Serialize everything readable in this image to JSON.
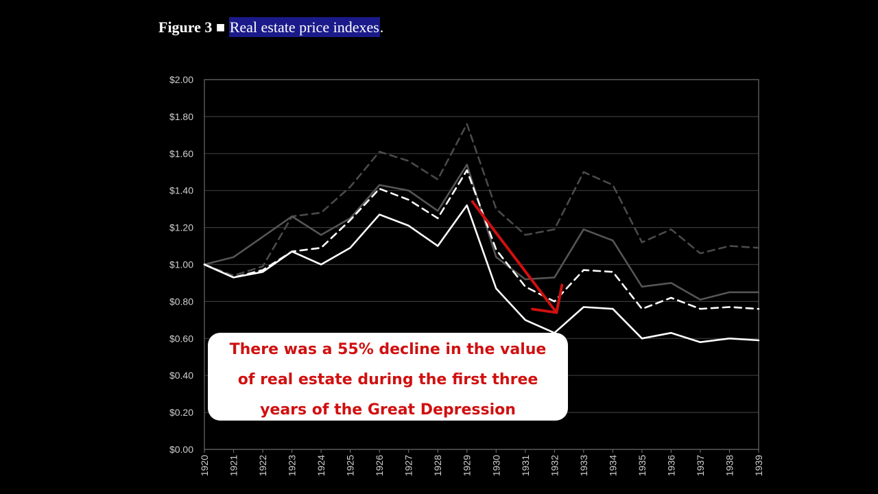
{
  "figure": {
    "label": "Figure 3",
    "marker": "■",
    "caption": "Real estate price indexes",
    "period": "."
  },
  "callout": {
    "lines": [
      "There was a 55% decline in the value",
      "of real estate during the first three",
      "years of the Great Depression"
    ]
  },
  "colors": {
    "background": "#000000",
    "arrow": "#d01010",
    "callout_text": "#d01010",
    "highlight": "#1a1a8a"
  },
  "chart_data": {
    "type": "line",
    "title": "",
    "xlabel": "",
    "ylabel": "",
    "ylim": [
      0,
      2
    ],
    "y_ticks": [
      "$0.00",
      "$0.20",
      "$0.40",
      "$0.60",
      "$0.80",
      "$1.00",
      "$1.20",
      "$1.40",
      "$1.60",
      "$1.80",
      "$2.00"
    ],
    "x": [
      "1920",
      "1921",
      "1922",
      "1923",
      "1924",
      "1925",
      "1926",
      "1927",
      "1928",
      "1929",
      "1930",
      "1931",
      "1932",
      "1933",
      "1934",
      "1935",
      "1936",
      "1937",
      "1938",
      "1939"
    ],
    "grid": true,
    "series": [
      {
        "style": "dashed",
        "color": "#4a4a4a",
        "values": [
          1.0,
          0.94,
          0.99,
          1.26,
          1.28,
          1.42,
          1.61,
          1.56,
          1.46,
          1.76,
          1.3,
          1.16,
          1.19,
          1.5,
          1.43,
          1.12,
          1.19,
          1.06,
          1.1,
          1.09
        ]
      },
      {
        "style": "solid",
        "color": "#555555",
        "values": [
          1.0,
          1.04,
          1.15,
          1.26,
          1.16,
          1.25,
          1.43,
          1.4,
          1.29,
          1.54,
          1.04,
          0.92,
          0.93,
          1.19,
          1.13,
          0.88,
          0.9,
          0.81,
          0.85,
          0.85
        ]
      },
      {
        "style": "dashed",
        "color": "#ffffff",
        "values": [
          1.0,
          0.93,
          0.97,
          1.07,
          1.09,
          1.24,
          1.41,
          1.35,
          1.25,
          1.51,
          1.08,
          0.88,
          0.8,
          0.97,
          0.96,
          0.76,
          0.82,
          0.76,
          0.77,
          0.76
        ]
      },
      {
        "style": "solid",
        "color": "#ffffff",
        "values": [
          1.0,
          0.93,
          0.96,
          1.07,
          1.0,
          1.09,
          1.27,
          1.21,
          1.1,
          1.32,
          0.87,
          0.7,
          0.63,
          0.77,
          0.76,
          0.6,
          0.63,
          0.58,
          0.6,
          0.59
        ]
      }
    ],
    "annotation": {
      "type": "arrow",
      "from": [
        "1929",
        1.34
      ],
      "to": [
        "1932",
        0.74
      ]
    }
  }
}
